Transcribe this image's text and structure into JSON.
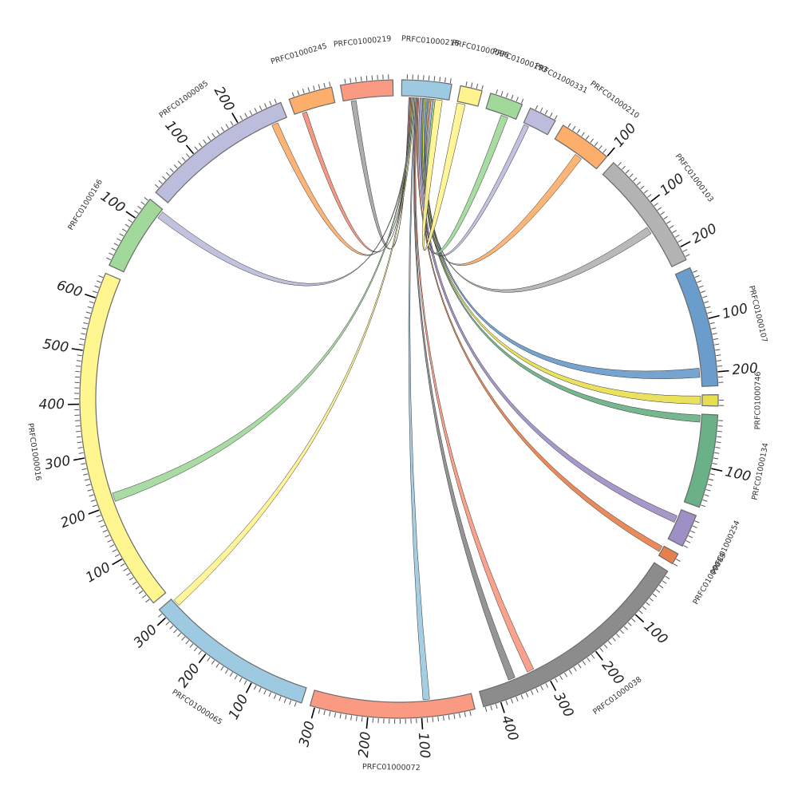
{
  "chart_data": {
    "type": "chord",
    "title": "",
    "tick_minor_step": 10,
    "tick_major_step": 100,
    "segments": [
      {
        "name": "PRFC01000218",
        "length": 93,
        "color": "#9ecae1"
      },
      {
        "name": "PRFC01000096",
        "length": 41,
        "color": "#fff38f"
      },
      {
        "name": "PRFC01000193",
        "length": 62,
        "color": "#a1d99b"
      },
      {
        "name": "PRFC01000331",
        "length": 52,
        "color": "#bcbddc"
      },
      {
        "name": "PRFC01000210",
        "length": 100,
        "color": "#fdae6b"
      },
      {
        "name": "PRFC01000103",
        "length": 226,
        "color": "#b3b3b3"
      },
      {
        "name": "PRFC01000107",
        "length": 226,
        "color": "#6a9ccc"
      },
      {
        "name": "PRFC01000746",
        "length": 21,
        "color": "#e8df50"
      },
      {
        "name": "PRFC01000134",
        "length": 175,
        "color": "#6ab187"
      },
      {
        "name": "PRFC01000254",
        "length": 62,
        "color": "#9e8fc4"
      },
      {
        "name": "PRFC01000089",
        "length": 21,
        "color": "#e6804d"
      },
      {
        "name": "PRFC01000038",
        "length": 433,
        "color": "#8c8c8c"
      },
      {
        "name": "PRFC01000072",
        "length": 309,
        "color": "#fb9a82"
      },
      {
        "name": "PRFC01000065",
        "length": 319,
        "color": "#9ecae1"
      },
      {
        "name": "PRFC01000016",
        "length": 649,
        "color": "#fff68f"
      },
      {
        "name": "PRFC01000166",
        "length": 144,
        "color": "#a1d99b"
      },
      {
        "name": "PRFC01000085",
        "length": 288,
        "color": "#bcbddc"
      },
      {
        "name": "PRFC01000245",
        "length": 82,
        "color": "#fdae6b"
      },
      {
        "name": "PRFC01000219",
        "length": 98,
        "color": "#fb9a82"
      }
    ],
    "links": [
      {
        "source": "PRFC01000218",
        "src": [
          14,
          16
        ],
        "target": "PRFC01000219",
        "tgt": [
          15,
          25
        ],
        "color": "#a6a6a6"
      },
      {
        "source": "PRFC01000218",
        "src": [
          16,
          18
        ],
        "target": "PRFC01000245",
        "tgt": [
          15,
          24
        ],
        "color": "#f4907a"
      },
      {
        "source": "PRFC01000218",
        "src": [
          18,
          20
        ],
        "target": "PRFC01000085",
        "tgt": [
          255,
          268
        ],
        "color": "#fdae6b"
      },
      {
        "source": "PRFC01000218",
        "src": [
          20,
          22
        ],
        "target": "PRFC01000166",
        "tgt": [
          125,
          140
        ],
        "color": "#bcbddc"
      },
      {
        "source": "PRFC01000218",
        "src": [
          22,
          24
        ],
        "target": "PRFC01000016",
        "tgt": [
          205,
          222
        ],
        "color": "#a1d99b"
      },
      {
        "source": "PRFC01000218",
        "src": [
          24,
          26
        ],
        "target": "PRFC01000065",
        "tgt": [
          300,
          314
        ],
        "color": "#fff38f"
      },
      {
        "source": "PRFC01000218",
        "src": [
          26,
          28
        ],
        "target": "PRFC01000072",
        "tgt": [
          82,
          95
        ],
        "color": "#9ecae1"
      },
      {
        "source": "PRFC01000218",
        "src": [
          28,
          30
        ],
        "target": "PRFC01000038",
        "tgt": [
          358,
          372
        ],
        "color": "#8c8c8c"
      },
      {
        "source": "PRFC01000218",
        "src": [
          30,
          32
        ],
        "target": "PRFC01000038",
        "tgt": [
          318,
          332
        ],
        "color": "#fb9a82"
      },
      {
        "source": "PRFC01000218",
        "src": [
          32,
          34
        ],
        "target": "PRFC01000089",
        "tgt": [
          2,
          14
        ],
        "color": "#e6804d"
      },
      {
        "source": "PRFC01000218",
        "src": [
          36,
          42
        ],
        "target": "PRFC01000254",
        "tgt": [
          14,
          28
        ],
        "color": "#9e8fc4"
      },
      {
        "source": "PRFC01000218",
        "src": [
          42,
          45
        ],
        "target": "PRFC01000134",
        "tgt": [
          2,
          16
        ],
        "color": "#6ab187"
      },
      {
        "source": "PRFC01000218",
        "src": [
          45,
          48
        ],
        "target": "PRFC01000746",
        "tgt": [
          2,
          18
        ],
        "color": "#e8df50"
      },
      {
        "source": "PRFC01000218",
        "src": [
          48,
          52
        ],
        "target": "PRFC01000107",
        "tgt": [
          190,
          208
        ],
        "color": "#6a9ccc"
      },
      {
        "source": "PRFC01000218",
        "src": [
          52,
          55
        ],
        "target": "PRFC01000103",
        "tgt": [
          135,
          150
        ],
        "color": "#b3b3b3"
      },
      {
        "source": "PRFC01000218",
        "src": [
          55,
          58
        ],
        "target": "PRFC01000210",
        "tgt": [
          50,
          65
        ],
        "color": "#fdae6b"
      },
      {
        "source": "PRFC01000218",
        "src": [
          58,
          62
        ],
        "target": "PRFC01000331",
        "tgt": [
          2,
          12
        ],
        "color": "#bcbddc"
      },
      {
        "source": "PRFC01000218",
        "src": [
          62,
          66
        ],
        "target": "PRFC01000193",
        "tgt": [
          32,
          46
        ],
        "color": "#a1d99b"
      },
      {
        "source": "PRFC01000218",
        "src": [
          66,
          80
        ],
        "target": "PRFC01000096",
        "tgt": [
          0,
          16
        ],
        "color": "#fff38f"
      }
    ]
  }
}
